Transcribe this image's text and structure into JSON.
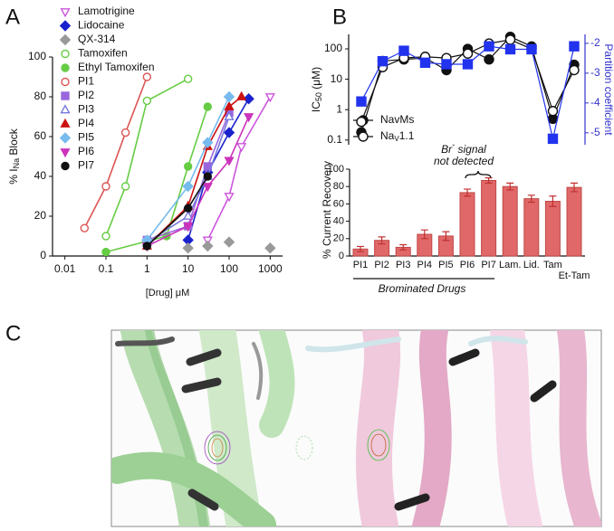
{
  "panel_labels": [
    "A",
    "B",
    "C"
  ],
  "chart_data": [
    {
      "type": "line",
      "log_x": true,
      "x_label": "[Drug] μM",
      "y_label": {
        "prefix": "% I",
        "sub": "Na",
        "suffix": " Block"
      },
      "xlim": [
        0.005,
        2000
      ],
      "xticks": [
        0.01,
        0.1,
        1,
        10,
        100,
        1000
      ],
      "ylim": [
        0,
        100
      ],
      "yticks": [
        0,
        20,
        40,
        60,
        80,
        100
      ],
      "series": [
        {
          "name": "Lamotrigine",
          "color": "#cc55dd",
          "marker": "tri-down",
          "filled": false,
          "x": [
            30,
            100,
            200,
            1000
          ],
          "values": [
            8,
            30,
            55,
            80
          ]
        },
        {
          "name": "Lidocaine",
          "color": "#1a22cc",
          "marker": "diamond",
          "filled": true,
          "x": [
            10,
            30,
            100,
            300
          ],
          "values": [
            8,
            42,
            62,
            79
          ]
        },
        {
          "name": "QX-314",
          "color": "#999999",
          "marker": "diamond",
          "filled": true,
          "connect": false,
          "x": [
            10,
            30,
            100,
            1000
          ],
          "values": [
            4,
            5,
            7,
            4
          ]
        },
        {
          "name": "Tamoxifen",
          "color": "#66cc44",
          "marker": "circle",
          "filled": false,
          "x": [
            0.1,
            0.3,
            1,
            10
          ],
          "values": [
            10,
            35,
            78,
            89
          ]
        },
        {
          "name": "Ethyl Tamoxifen",
          "color": "#66cc44",
          "marker": "circle",
          "filled": true,
          "x": [
            0.1,
            3,
            10,
            30
          ],
          "values": [
            2,
            10,
            45,
            75
          ]
        },
        {
          "name": "PI1",
          "color": "#dd5555",
          "marker": "circle",
          "filled": false,
          "x": [
            0.03,
            0.1,
            0.3,
            1
          ],
          "values": [
            14,
            35,
            62,
            90
          ]
        },
        {
          "name": "PI2",
          "color": "#9966dd",
          "marker": "square",
          "filled": true,
          "x": [
            1,
            10,
            30,
            100
          ],
          "values": [
            8,
            15,
            45,
            72
          ]
        },
        {
          "name": "PI3",
          "color": "#7777dd",
          "marker": "tri-up",
          "filled": false,
          "x": [
            1,
            10,
            30,
            100
          ],
          "values": [
            7,
            20,
            40,
            70
          ]
        },
        {
          "name": "PI4",
          "color": "#cc1111",
          "marker": "tri-up",
          "filled": true,
          "x": [
            1,
            10,
            30,
            100,
            200
          ],
          "values": [
            5,
            25,
            55,
            75,
            80
          ]
        },
        {
          "name": "PI5",
          "color": "#77bbee",
          "marker": "diamond",
          "filled": true,
          "x": [
            1,
            10,
            30,
            100
          ],
          "values": [
            8,
            35,
            57,
            80
          ]
        },
        {
          "name": "PI6",
          "color": "#cc33bb",
          "marker": "tri-down",
          "filled": true,
          "x": [
            1,
            10,
            30,
            100,
            300
          ],
          "values": [
            5,
            15,
            35,
            48,
            70
          ]
        },
        {
          "name": "PI7",
          "color": "#111111",
          "marker": "circle",
          "filled": true,
          "x": [
            1,
            10,
            30
          ],
          "values": [
            5,
            24,
            40
          ]
        }
      ]
    },
    {
      "type": "line",
      "log_y": true,
      "y_label": {
        "prefix": "IC",
        "sub": "50",
        "suffix": " (μM)"
      },
      "y2_label": "Partition coefficient",
      "ylim": [
        0.07,
        300
      ],
      "yticks": [
        0.1,
        1,
        10,
        100
      ],
      "y2lim": [
        -5.4,
        -1.7
      ],
      "y2ticks": [
        -5,
        -4,
        -3,
        -2
      ],
      "y2_color": "#3333cc",
      "series": [
        {
          "name": "NavMs",
          "color": "#111111",
          "marker": "circle",
          "filled": true,
          "values": [
            0.18,
            40,
            45,
            50,
            20,
            100,
            45,
            250,
            120,
            0.5,
            30
          ]
        },
        {
          "name": {
            "prefix": "Na",
            "sub": "V",
            "suffix": "1.1"
          },
          "color": "#111111",
          "marker": "circle",
          "filled": false,
          "values": [
            0.4,
            25,
            50,
            55,
            50,
            70,
            150,
            200,
            100,
            0.9,
            20
          ]
        },
        {
          "axis": "y2",
          "color": "#2233ee",
          "marker": "square",
          "filled": true,
          "values": [
            -3.95,
            -2.6,
            -2.25,
            -2.65,
            -2.7,
            -2.7,
            -2.1,
            -2.2,
            -2.2,
            -5.2,
            -2.1
          ]
        }
      ]
    },
    {
      "type": "bar",
      "y_label": "% Current Recovery",
      "categories": [
        "PI1",
        "PI2",
        "PI3",
        "PI4",
        "PI5",
        "PI6",
        "PI7",
        "Lam.",
        "Lid.",
        "Tam",
        "Et-Tam"
      ],
      "values": [
        8,
        18,
        10,
        25,
        23,
        73,
        87,
        80,
        66,
        63,
        79
      ],
      "errors": [
        3,
        4,
        3,
        5,
        5,
        4,
        3,
        4,
        4,
        6,
        5
      ],
      "color": "#e06868",
      "ylim": [
        0,
        100
      ],
      "yticks": [
        0,
        20,
        40,
        60,
        80,
        100
      ],
      "annotation": {
        "prefix": "Br",
        "sup": "-",
        "suffix": " signal",
        "line2": "not detected"
      },
      "group_label": "Brominated Drugs"
    }
  ]
}
